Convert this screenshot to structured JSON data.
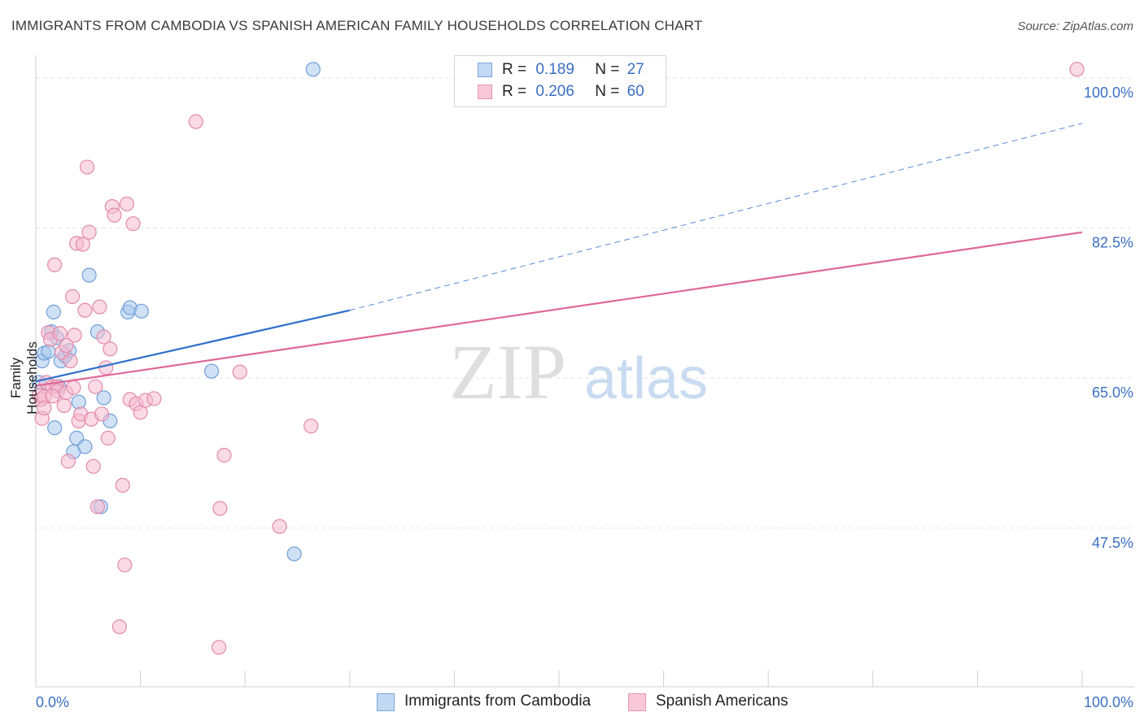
{
  "title": "IMMIGRANTS FROM CAMBODIA VS SPANISH AMERICAN FAMILY HOUSEHOLDS CORRELATION CHART",
  "source": "Source: ZipAtlas.com",
  "watermark": {
    "zip": "ZIP",
    "atlas": "atlas"
  },
  "legend": {
    "series1": {
      "r_label": "R =",
      "r_value": "0.189",
      "n_label": "N =",
      "n_value": "27"
    },
    "series2": {
      "r_label": "R =",
      "r_value": "0.206",
      "n_label": "N =",
      "n_value": "60"
    }
  },
  "colors": {
    "blue_fill": "#a9c8ef",
    "blue_stroke": "#6f9fd8",
    "blue_line": "#2f6fcc",
    "pink_fill": "#f6bcd0",
    "pink_stroke": "#e28aaa",
    "pink_line": "#e06896",
    "grid": "#e3e3e3",
    "axis_text": "#3a6fc4"
  },
  "chart_data": {
    "type": "scatter",
    "title": "IMMIGRANTS FROM CAMBODIA VS SPANISH AMERICAN FAMILY HOUSEHOLDS CORRELATION CHART",
    "xlabel": "",
    "ylabel": "Family Households",
    "xlim": [
      0,
      100
    ],
    "ylim": [
      29.0,
      101.5
    ],
    "x_tick_labels": [
      "0.0%",
      "100.0%"
    ],
    "y_ticks": [
      47.5,
      65.0,
      82.5,
      100.0
    ],
    "y_tick_labels": [
      "47.5%",
      "65.0%",
      "82.5%",
      "100.0%"
    ],
    "grid": true,
    "legend_position": "top-center",
    "series": [
      {
        "name": "Immigrants from Cambodia",
        "color": "blue",
        "trend": {
          "x0": 0,
          "y0": 64.6,
          "x1": 30,
          "y1": 72.9,
          "dash_x1": 100,
          "dash_y1": 94.7
        },
        "points": [
          [
            0.3,
            64.5
          ],
          [
            0.6,
            67.0
          ],
          [
            0.8,
            67.9
          ],
          [
            1.2,
            68.1
          ],
          [
            1.5,
            70.4
          ],
          [
            1.7,
            72.7
          ],
          [
            1.8,
            59.2
          ],
          [
            2.0,
            69.7
          ],
          [
            2.2,
            64.0
          ],
          [
            2.4,
            67.0
          ],
          [
            2.8,
            67.6
          ],
          [
            3.2,
            68.2
          ],
          [
            3.6,
            56.4
          ],
          [
            3.9,
            58.0
          ],
          [
            4.1,
            62.2
          ],
          [
            4.7,
            57.0
          ],
          [
            5.1,
            77.0
          ],
          [
            5.9,
            70.4
          ],
          [
            6.2,
            50.0
          ],
          [
            6.5,
            62.7
          ],
          [
            7.1,
            60.0
          ],
          [
            8.8,
            72.7
          ],
          [
            9.0,
            73.2
          ],
          [
            10.1,
            72.8
          ],
          [
            16.8,
            65.8
          ],
          [
            24.7,
            44.5
          ],
          [
            26.5,
            101.0
          ]
        ]
      },
      {
        "name": "Spanish Americans",
        "color": "pink",
        "trend": {
          "x0": 0,
          "y0": 64.1,
          "x1": 100,
          "y1": 82.0
        },
        "points": [
          [
            0.3,
            63.0
          ],
          [
            0.5,
            62.5
          ],
          [
            0.6,
            60.3
          ],
          [
            0.8,
            62.8
          ],
          [
            1.0,
            64.5
          ],
          [
            1.2,
            70.3
          ],
          [
            1.4,
            69.5
          ],
          [
            1.6,
            64.0
          ],
          [
            1.8,
            78.2
          ],
          [
            2.0,
            64.0
          ],
          [
            2.1,
            63.5
          ],
          [
            2.3,
            70.2
          ],
          [
            2.5,
            68.0
          ],
          [
            2.7,
            61.8
          ],
          [
            2.9,
            63.3
          ],
          [
            3.1,
            55.3
          ],
          [
            3.3,
            67.0
          ],
          [
            3.5,
            74.5
          ],
          [
            3.7,
            70.0
          ],
          [
            3.9,
            80.7
          ],
          [
            4.1,
            60.0
          ],
          [
            4.3,
            60.8
          ],
          [
            4.5,
            80.6
          ],
          [
            4.7,
            72.9
          ],
          [
            4.9,
            89.6
          ],
          [
            5.1,
            82.0
          ],
          [
            5.3,
            60.2
          ],
          [
            5.5,
            54.7
          ],
          [
            5.7,
            64.0
          ],
          [
            5.9,
            50.0
          ],
          [
            6.1,
            73.3
          ],
          [
            6.3,
            60.8
          ],
          [
            6.5,
            69.8
          ],
          [
            6.7,
            66.2
          ],
          [
            6.9,
            58.0
          ],
          [
            7.1,
            68.4
          ],
          [
            7.3,
            85.0
          ],
          [
            7.5,
            84.0
          ],
          [
            8.0,
            36.0
          ],
          [
            8.3,
            52.5
          ],
          [
            8.5,
            43.2
          ],
          [
            8.7,
            85.3
          ],
          [
            9.0,
            62.5
          ],
          [
            9.3,
            83.0
          ],
          [
            9.6,
            62.0
          ],
          [
            10.0,
            61.0
          ],
          [
            10.5,
            62.4
          ],
          [
            11.3,
            62.6
          ],
          [
            15.3,
            94.9
          ],
          [
            17.5,
            33.6
          ],
          [
            17.6,
            49.8
          ],
          [
            18.0,
            56.0
          ],
          [
            19.5,
            65.7
          ],
          [
            23.3,
            47.7
          ],
          [
            26.3,
            59.4
          ],
          [
            99.5,
            101.0
          ],
          [
            0.8,
            61.5
          ],
          [
            1.6,
            62.9
          ],
          [
            2.9,
            68.8
          ],
          [
            3.6,
            63.9
          ]
        ]
      }
    ]
  }
}
